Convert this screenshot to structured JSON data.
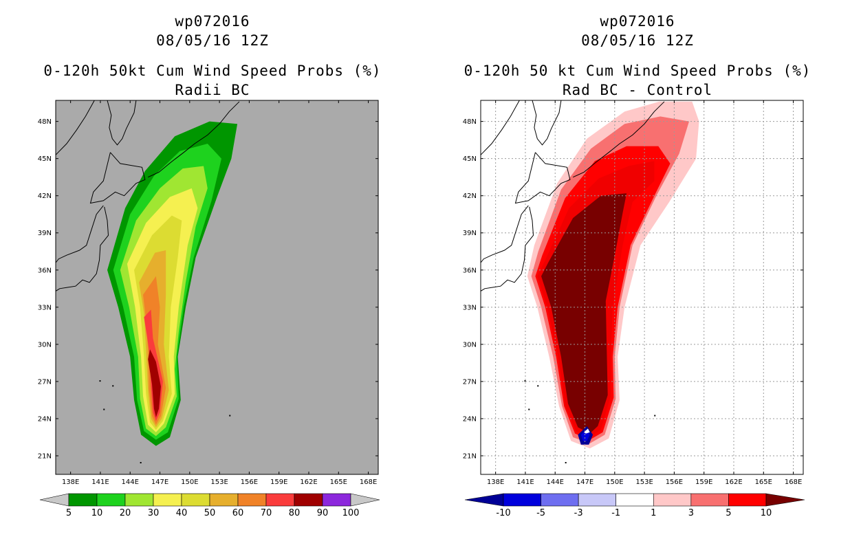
{
  "panels": [
    {
      "id": "left",
      "storm_id": "wp072016",
      "datetime": "08/05/16 12Z",
      "title": "0-120h 50kt Cum Wind Speed Probs (%)",
      "subtitle": "Radii BC",
      "background": "#aaaaaa",
      "grid": false
    },
    {
      "id": "right",
      "storm_id": "wp072016",
      "datetime": "08/05/16 12Z",
      "title": "0-120h 50 kt Cum Wind Speed Probs (%)",
      "subtitle": "Rad BC - Control",
      "background": "#ffffff",
      "grid": true
    }
  ],
  "chart_data": [
    {
      "type": "heatmap",
      "title": "0-120h 50kt Cum Wind Speed Probs (%)",
      "subtitle": "Radii BC",
      "x_ticks": [
        "138E",
        "141E",
        "144E",
        "147E",
        "150E",
        "153E",
        "156E",
        "159E",
        "162E",
        "165E",
        "168E"
      ],
      "y_ticks": [
        "21N",
        "24N",
        "27N",
        "30N",
        "33N",
        "36N",
        "39N",
        "42N",
        "45N",
        "48N"
      ],
      "xlim": [
        136.5,
        169
      ],
      "ylim": [
        19.5,
        49.7
      ],
      "colorbar": {
        "labels": [
          "5",
          "10",
          "20",
          "30",
          "40",
          "50",
          "60",
          "70",
          "80",
          "90",
          "100"
        ],
        "colors": [
          "#009600",
          "#1ed21e",
          "#a0e632",
          "#f5f050",
          "#dcdc32",
          "#e6af2d",
          "#f08228",
          "#fa3c3c",
          "#a00000",
          "#8c28dc"
        ],
        "end_colors": [
          "#c8c8c8",
          "#c8c8c8"
        ]
      },
      "levels": [
        5,
        10,
        20,
        30,
        40,
        50,
        60,
        70,
        80,
        90
      ]
    },
    {
      "type": "heatmap",
      "title": "0-120h 50 kt Cum Wind Speed Probs (%)",
      "subtitle": "Rad BC - Control",
      "x_ticks": [
        "138E",
        "141E",
        "144E",
        "147E",
        "150E",
        "153E",
        "156E",
        "159E",
        "162E",
        "165E",
        "168E"
      ],
      "y_ticks": [
        "21N",
        "24N",
        "27N",
        "30N",
        "33N",
        "36N",
        "39N",
        "42N",
        "45N",
        "48N"
      ],
      "xlim": [
        136.5,
        169
      ],
      "ylim": [
        19.5,
        49.7
      ],
      "colorbar": {
        "labels": [
          "-10",
          "-5",
          "-3",
          "-1",
          "1",
          "3",
          "5",
          "10"
        ],
        "colors": [
          "#0000dc",
          "#6e6ef0",
          "#c8c8f8",
          "#ffffff",
          "#ffc8c8",
          "#f87070",
          "#ff0000"
        ],
        "end_colors": [
          "#000096",
          "#780000"
        ]
      },
      "levels": [
        -10,
        -5,
        -3,
        -1,
        1,
        3,
        5,
        10
      ]
    }
  ]
}
